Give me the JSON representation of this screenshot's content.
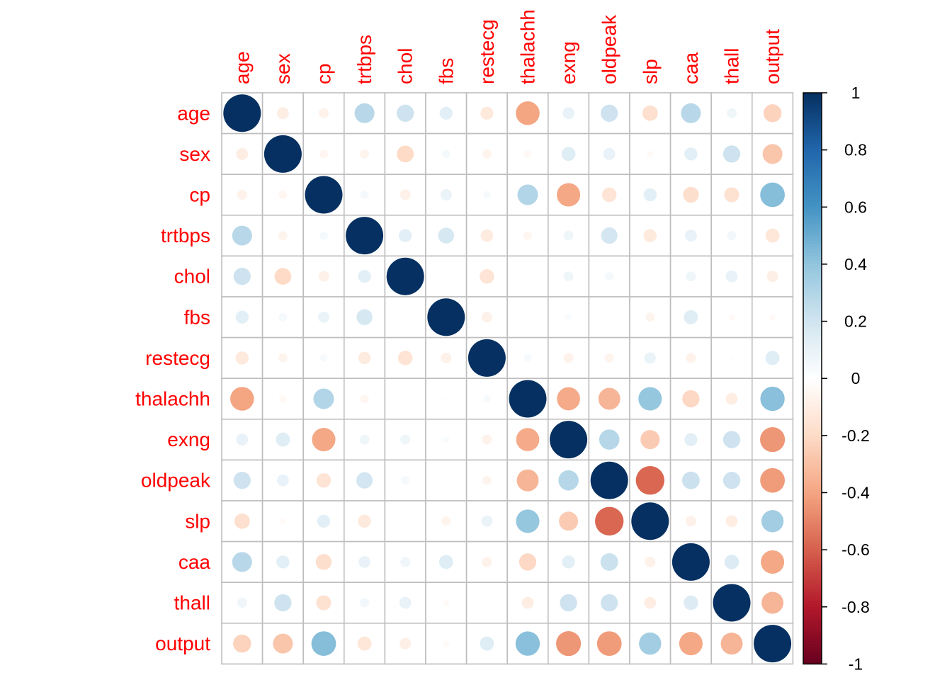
{
  "chart_data": {
    "type": "heatmap",
    "variables": [
      "age",
      "sex",
      "cp",
      "trtbps",
      "chol",
      "fbs",
      "restecg",
      "thalachh",
      "exng",
      "oldpeak",
      "slp",
      "caa",
      "thall",
      "output"
    ],
    "matrix": [
      [
        1,
        -0.1,
        -0.07,
        0.28,
        0.21,
        0.12,
        -0.12,
        -0.4,
        0.1,
        0.21,
        -0.17,
        0.28,
        0.07,
        -0.23
      ],
      [
        -0.1,
        1,
        -0.05,
        -0.06,
        -0.2,
        0.05,
        -0.06,
        -0.04,
        0.14,
        0.1,
        -0.03,
        0.12,
        0.21,
        -0.28
      ],
      [
        -0.07,
        -0.05,
        1,
        0.05,
        -0.08,
        0.09,
        0.04,
        0.3,
        -0.39,
        -0.15,
        0.12,
        -0.18,
        -0.16,
        0.43
      ],
      [
        0.28,
        -0.06,
        0.05,
        1,
        0.12,
        0.18,
        -0.11,
        -0.05,
        0.07,
        0.19,
        -0.12,
        0.1,
        0.06,
        -0.14
      ],
      [
        0.21,
        -0.2,
        -0.08,
        0.12,
        1,
        0.01,
        -0.15,
        -0.01,
        0.07,
        0.05,
        -0.0,
        0.07,
        0.1,
        -0.09
      ],
      [
        0.12,
        0.05,
        0.09,
        0.18,
        0.01,
        1,
        -0.08,
        -0.01,
        0.03,
        0.01,
        -0.06,
        0.14,
        -0.03,
        -0.03
      ],
      [
        -0.12,
        -0.06,
        0.04,
        -0.11,
        -0.15,
        -0.08,
        1,
        0.04,
        -0.07,
        -0.06,
        0.09,
        -0.07,
        -0.01,
        0.14
      ],
      [
        -0.4,
        -0.04,
        0.3,
        -0.05,
        -0.01,
        -0.01,
        0.04,
        1,
        -0.38,
        -0.34,
        0.39,
        -0.21,
        -0.1,
        0.42
      ],
      [
        0.1,
        0.14,
        -0.39,
        0.07,
        0.07,
        0.03,
        -0.07,
        -0.38,
        1,
        0.29,
        -0.26,
        0.12,
        0.21,
        -0.44
      ],
      [
        0.21,
        0.1,
        -0.15,
        0.19,
        0.05,
        0.01,
        -0.06,
        -0.34,
        0.29,
        1,
        -0.58,
        0.22,
        0.21,
        -0.43
      ],
      [
        -0.17,
        -0.03,
        0.12,
        -0.12,
        -0.0,
        -0.06,
        0.09,
        0.39,
        -0.26,
        -0.58,
        1,
        -0.08,
        -0.1,
        0.35
      ],
      [
        0.28,
        0.12,
        -0.18,
        0.1,
        0.07,
        0.14,
        -0.07,
        -0.21,
        0.12,
        0.22,
        -0.08,
        1,
        0.15,
        -0.39
      ],
      [
        0.07,
        0.21,
        -0.16,
        0.06,
        0.1,
        -0.03,
        -0.01,
        -0.1,
        0.21,
        0.21,
        -0.1,
        0.15,
        1,
        -0.34
      ],
      [
        -0.23,
        -0.28,
        0.43,
        -0.14,
        -0.09,
        -0.03,
        0.14,
        0.42,
        -0.44,
        -0.43,
        0.35,
        -0.39,
        -0.34,
        1
      ]
    ],
    "colorbar": {
      "min": -1,
      "max": 1,
      "ticks": [
        "1",
        "0.8",
        "0.6",
        "0.4",
        "0.2",
        "0",
        "-0.2",
        "-0.4",
        "-0.6",
        "-0.8",
        "-1"
      ]
    },
    "colors": {
      "labels": "#ff0000",
      "grid": "#bebebe",
      "strong_negative": "#67001f",
      "strong_positive": "#053061"
    }
  }
}
